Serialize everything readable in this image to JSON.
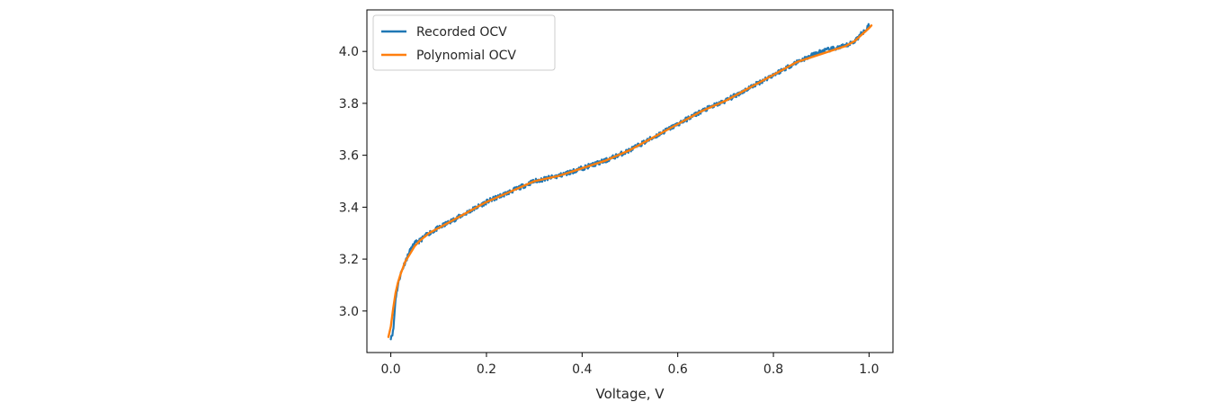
{
  "chart_data": {
    "type": "line",
    "title": "",
    "xlabel": "Voltage, V",
    "ylabel": "",
    "xlim": [
      -0.05,
      1.05
    ],
    "ylim": [
      2.84,
      4.16
    ],
    "xticks": [
      0.0,
      0.2,
      0.4,
      0.6,
      0.8,
      1.0
    ],
    "xtick_labels": [
      "0.0",
      "0.2",
      "0.4",
      "0.6",
      "0.8",
      "1.0"
    ],
    "yticks": [
      3.0,
      3.2,
      3.4,
      3.6,
      3.8,
      4.0
    ],
    "ytick_labels": [
      "3.0",
      "3.2",
      "3.4",
      "3.6",
      "3.8",
      "4.0"
    ],
    "grid": false,
    "legend_position": "upper-left",
    "series": [
      {
        "name": "Recorded OCV",
        "color": "#1f77b4",
        "noisy": true,
        "x": [
          0.0,
          0.005,
          0.01,
          0.015,
          0.02,
          0.03,
          0.04,
          0.05,
          0.06,
          0.08,
          0.1,
          0.12,
          0.15,
          0.18,
          0.2,
          0.25,
          0.3,
          0.35,
          0.4,
          0.45,
          0.5,
          0.55,
          0.6,
          0.65,
          0.7,
          0.75,
          0.8,
          0.85,
          0.9,
          0.95,
          0.97,
          1.0
        ],
        "y": [
          2.9,
          2.92,
          3.05,
          3.1,
          3.14,
          3.19,
          3.23,
          3.26,
          3.27,
          3.3,
          3.32,
          3.34,
          3.37,
          3.4,
          3.42,
          3.46,
          3.5,
          3.52,
          3.55,
          3.58,
          3.62,
          3.67,
          3.72,
          3.77,
          3.81,
          3.86,
          3.91,
          3.96,
          4.0,
          4.02,
          4.04,
          4.1
        ]
      },
      {
        "name": "Polynomial OCV",
        "color": "#ff7f0e",
        "noisy": false,
        "x": [
          -0.005,
          0.0,
          0.005,
          0.01,
          0.015,
          0.02,
          0.03,
          0.04,
          0.05,
          0.06,
          0.08,
          0.1,
          0.12,
          0.15,
          0.18,
          0.2,
          0.25,
          0.3,
          0.35,
          0.4,
          0.45,
          0.5,
          0.55,
          0.6,
          0.65,
          0.7,
          0.75,
          0.8,
          0.85,
          0.9,
          0.95,
          0.97,
          1.0,
          1.005
        ],
        "y": [
          2.9,
          2.94,
          3.01,
          3.07,
          3.11,
          3.14,
          3.19,
          3.22,
          3.25,
          3.27,
          3.3,
          3.32,
          3.34,
          3.37,
          3.4,
          3.42,
          3.46,
          3.5,
          3.52,
          3.55,
          3.58,
          3.62,
          3.67,
          3.72,
          3.77,
          3.81,
          3.86,
          3.91,
          3.96,
          3.99,
          4.02,
          4.04,
          4.09,
          4.1
        ]
      }
    ]
  }
}
